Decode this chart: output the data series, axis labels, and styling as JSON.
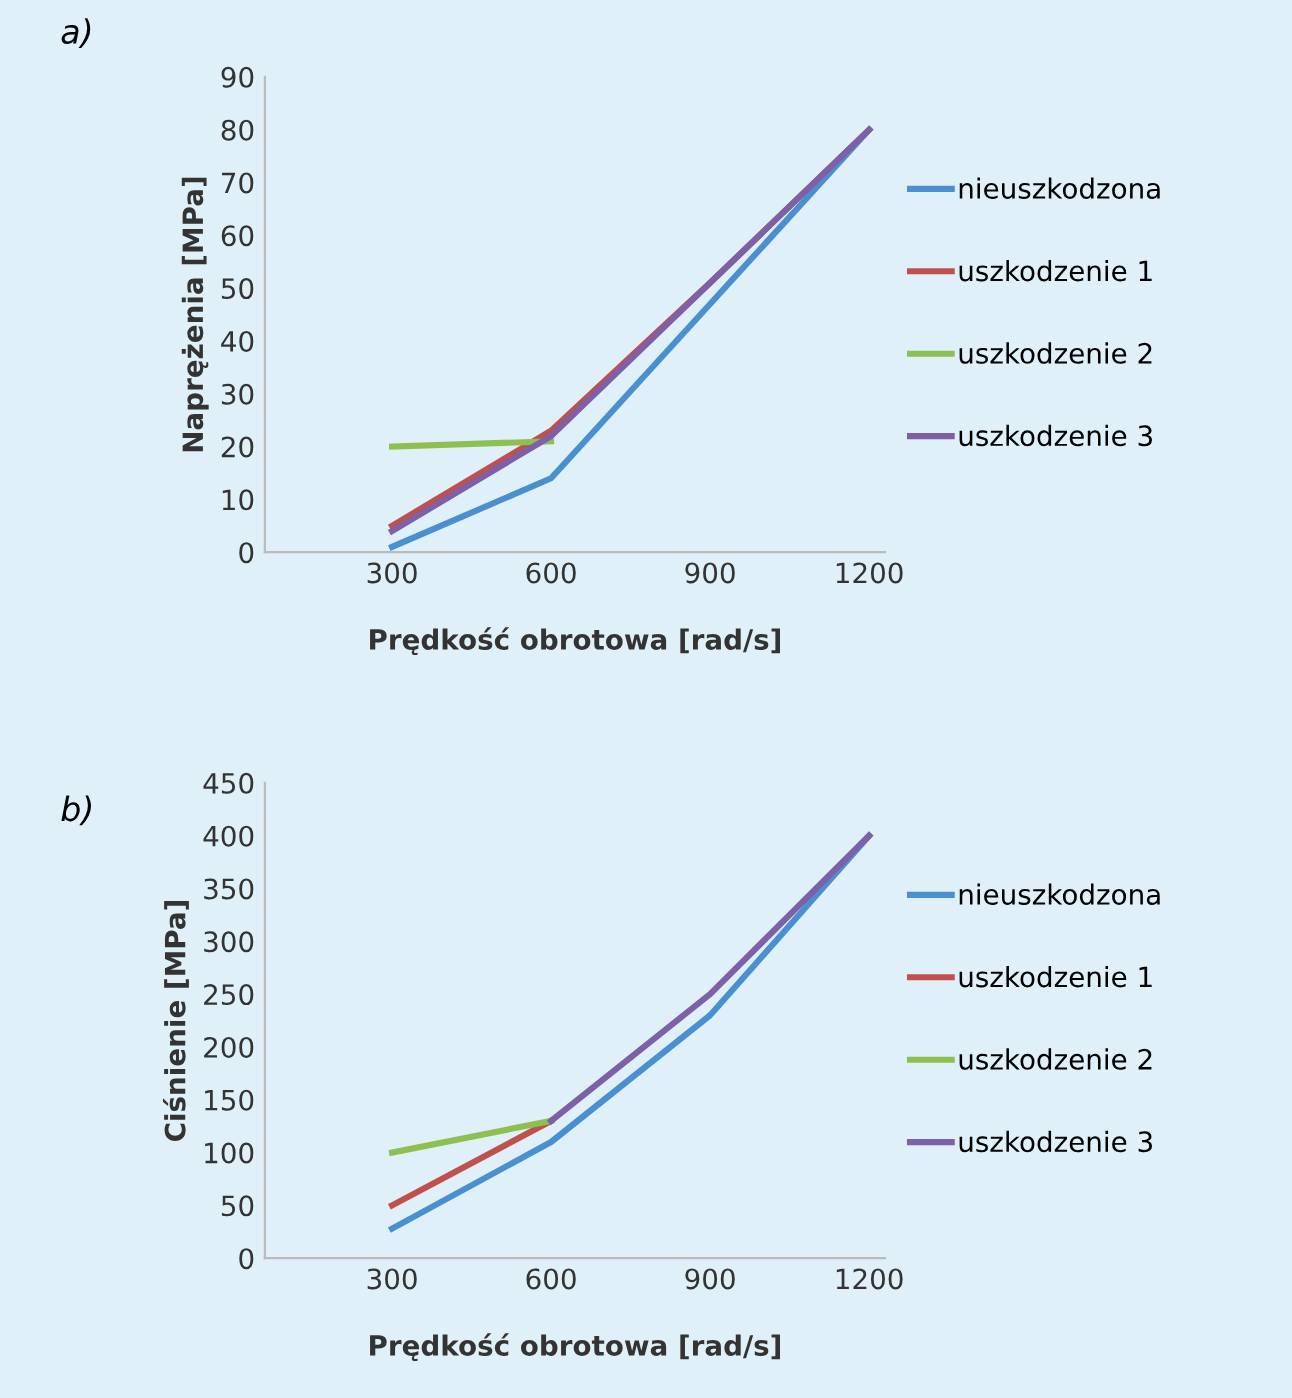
{
  "chart_data": [
    {
      "type": "line",
      "annotations": [
        "a)"
      ],
      "xlabel": "Prędkość obrotowa [rad/s]",
      "ylabel": "Naprężenia [MPa]",
      "categories": [
        "300",
        "600",
        "900",
        "1200"
      ],
      "ylim": [
        0,
        90
      ],
      "yticks": [
        0,
        10,
        20,
        30,
        40,
        50,
        60,
        70,
        80,
        90
      ],
      "grid": false,
      "legend": "right",
      "marker": "none",
      "line_style": "solid",
      "series": [
        {
          "name": "nieuszkodzona",
          "color": "#4a90d0",
          "values": [
            1,
            14,
            47,
            80
          ]
        },
        {
          "name": "uszkodzenie 1",
          "color": "#c0504d",
          "values": [
            5,
            23,
            51,
            80
          ]
        },
        {
          "name": "uszkodzenie 2",
          "color": "#8cc152",
          "values": [
            20,
            21,
            null,
            null
          ]
        },
        {
          "name": "uszkodzenie 3",
          "color": "#7d60a8",
          "values": [
            4,
            22,
            51,
            80
          ]
        }
      ]
    },
    {
      "type": "line",
      "annotations": [
        "b)"
      ],
      "xlabel": "Prędkość obrotowa [rad/s]",
      "ylabel": "Ciśnienie [MPa]",
      "categories": [
        "300",
        "600",
        "900",
        "1200"
      ],
      "ylim": [
        0,
        450
      ],
      "yticks": [
        0,
        50,
        100,
        150,
        200,
        250,
        300,
        350,
        400,
        450
      ],
      "grid": false,
      "legend": "right",
      "marker": "none",
      "line_style": "solid",
      "series": [
        {
          "name": "nieuszkodzona",
          "color": "#4a90d0",
          "values": [
            28,
            110,
            230,
            400
          ]
        },
        {
          "name": "uszkodzenie 1",
          "color": "#c0504d",
          "values": [
            50,
            130,
            null,
            null
          ]
        },
        {
          "name": "uszkodzenie 2",
          "color": "#8cc152",
          "values": [
            100,
            130,
            null,
            null
          ]
        },
        {
          "name": "uszkodzenie 3",
          "color": "#7d60a8",
          "values": [
            null,
            130,
            250,
            400
          ]
        }
      ]
    }
  ]
}
